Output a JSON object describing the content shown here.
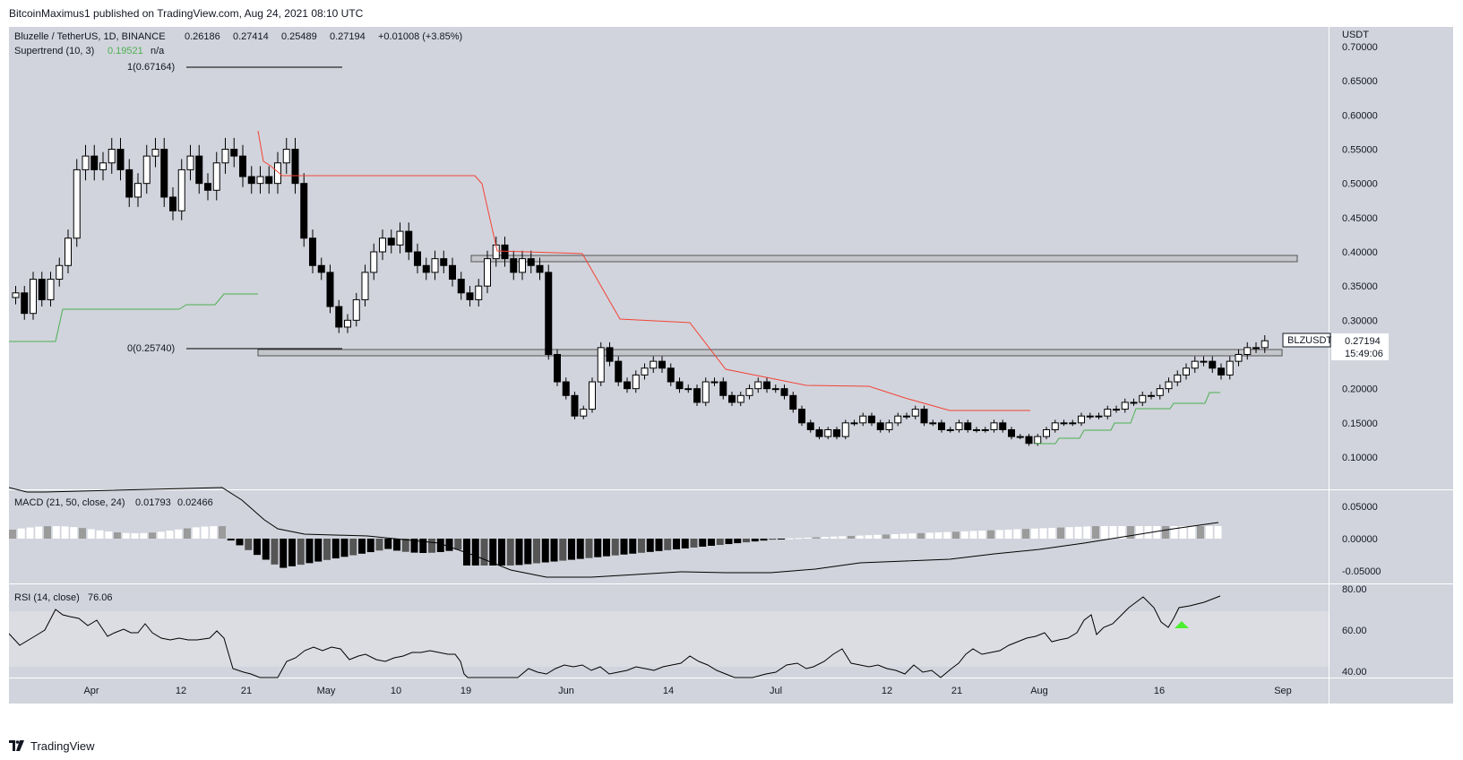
{
  "header": {
    "publisher": "BitcoinMaximus1 published on TradingView.com, Aug 24, 2021 08:10 UTC"
  },
  "legend": {
    "symbol": "Bluzelle / TetherUS, 1D, BINANCE",
    "open": "0.26186",
    "high": "0.27414",
    "low": "0.25489",
    "close": "0.27194",
    "change": "+0.01008 (+3.85%)",
    "supertrend_label": "Supertrend (10, 3)",
    "supertrend_value": "0.19521",
    "supertrend_na": "n/a",
    "macd_label": "MACD (21, 50, close, 24)",
    "macd_value1": "0.01793",
    "macd_value2": "0.02466",
    "rsi_label": "RSI (14, close)",
    "rsi_value": "76.06"
  },
  "fib": {
    "level1": "1(0.67164)",
    "level0": "0(0.25740)"
  },
  "price_axis": {
    "currency": "USDT",
    "ticks": [
      "0.70000",
      "0.65000",
      "0.60000",
      "0.55000",
      "0.50000",
      "0.45000",
      "0.40000",
      "0.35000",
      "0.30000",
      "0.25000",
      "0.20000",
      "0.15000",
      "0.10000"
    ],
    "ticker_tag": "BLZUSDT",
    "last_price": "0.27194",
    "countdown": "15:49:06"
  },
  "macd_axis": {
    "ticks": [
      "0.05000",
      "0.00000",
      "-0.05000"
    ]
  },
  "rsi_axis": {
    "ticks": [
      "80.00",
      "60.00",
      "40.00"
    ]
  },
  "time_axis": {
    "ticks": [
      "Apr",
      "12",
      "21",
      "May",
      "10",
      "19",
      "Jun",
      "14",
      "Jul",
      "12",
      "21",
      "Aug",
      "16",
      "Sep"
    ]
  },
  "colors": {
    "pane_bg": "#d1d4dc",
    "rsi_band": "#dcdde3",
    "supertrend_up": "#4caf50",
    "supertrend_down": "#f44336",
    "rsi_marker": "#4cef2e"
  },
  "footer": {
    "brand": "TradingView"
  },
  "chart_data": {
    "type": "candlestick",
    "title": "Bluzelle / TetherUS, 1D, BINANCE",
    "x": [
      "Apr",
      "12",
      "21",
      "May",
      "10",
      "19",
      "Jun",
      "14",
      "Jul",
      "12",
      "21",
      "Aug",
      "16",
      "Sep"
    ],
    "ylabel": "USDT",
    "ylim": [
      0.08,
      0.72
    ],
    "resistance_zones": [
      [
        0.388,
        0.398
      ],
      [
        0.251,
        0.261
      ]
    ],
    "fib_levels": [
      {
        "label": "1(0.67164)",
        "value": 0.67164
      },
      {
        "label": "0(0.25740)",
        "value": 0.2574
      }
    ],
    "close_series": [
      0.34,
      0.31,
      0.36,
      0.33,
      0.36,
      0.38,
      0.42,
      0.52,
      0.54,
      0.52,
      0.53,
      0.55,
      0.52,
      0.48,
      0.5,
      0.54,
      0.55,
      0.48,
      0.46,
      0.52,
      0.54,
      0.5,
      0.49,
      0.53,
      0.55,
      0.54,
      0.51,
      0.5,
      0.51,
      0.5,
      0.53,
      0.55,
      0.5,
      0.42,
      0.38,
      0.37,
      0.32,
      0.29,
      0.3,
      0.33,
      0.37,
      0.4,
      0.42,
      0.41,
      0.43,
      0.4,
      0.38,
      0.37,
      0.39,
      0.38,
      0.36,
      0.34,
      0.33,
      0.35,
      0.39,
      0.41,
      0.39,
      0.37,
      0.39,
      0.38,
      0.37,
      0.25,
      0.21,
      0.19,
      0.16,
      0.17,
      0.21,
      0.26,
      0.24,
      0.21,
      0.2,
      0.22,
      0.23,
      0.24,
      0.23,
      0.21,
      0.2,
      0.2,
      0.18,
      0.21,
      0.21,
      0.19,
      0.18,
      0.19,
      0.2,
      0.21,
      0.2,
      0.2,
      0.19,
      0.17,
      0.15,
      0.14,
      0.13,
      0.14,
      0.13,
      0.15,
      0.15,
      0.16,
      0.15,
      0.14,
      0.15,
      0.16,
      0.16,
      0.17,
      0.15,
      0.15,
      0.14,
      0.14,
      0.15,
      0.14,
      0.14,
      0.14,
      0.15,
      0.14,
      0.13,
      0.13,
      0.12,
      0.13,
      0.14,
      0.15,
      0.15,
      0.15,
      0.16,
      0.16,
      0.16,
      0.17,
      0.17,
      0.18,
      0.18,
      0.19,
      0.19,
      0.2,
      0.21,
      0.22,
      0.23,
      0.24,
      0.24,
      0.23,
      0.22,
      0.24,
      0.25,
      0.26,
      0.26,
      0.27
    ],
    "supertrend_down": [
      0.58,
      0.53,
      0.52,
      0.515,
      0.515,
      0.515,
      0.515,
      0.51,
      0.4,
      0.4,
      0.398,
      0.34,
      0.3,
      0.295,
      0.292,
      0.25,
      0.235,
      0.205,
      0.2,
      0.2,
      0.175,
      0.17,
      0.17
    ],
    "supertrend_up_early": [
      0.27,
      0.27,
      0.34,
      0.34,
      0.34,
      0.35,
      0.345
    ],
    "supertrend_up_late": [
      0.12,
      0.122,
      0.14,
      0.15,
      0.16,
      0.165,
      0.18,
      0.182,
      0.185,
      0.19,
      0.195
    ],
    "macd_line": [
      0.04,
      0.035,
      0.0,
      -0.02,
      -0.01,
      0.0,
      -0.04,
      -0.07,
      -0.07,
      -0.06,
      -0.055,
      -0.045,
      -0.03,
      -0.02,
      -0.005,
      0.01,
      0.02
    ],
    "macd_hist_hint": "histogram from positive (Apr) to negative (May-Jun) back to positive (Aug)",
    "rsi": [
      55,
      60,
      68,
      62,
      58,
      55,
      45,
      38,
      35,
      50,
      55,
      45,
      38,
      40,
      42,
      38,
      45,
      40,
      35,
      40,
      48,
      56,
      62,
      70,
      60,
      68,
      74,
      60,
      68,
      72,
      76
    ]
  }
}
